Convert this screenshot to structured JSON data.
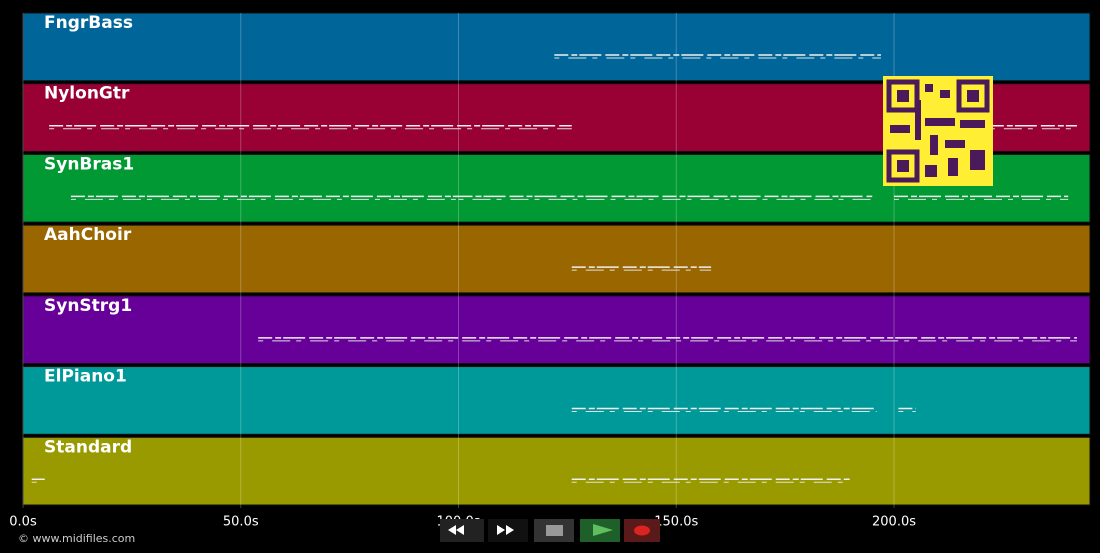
{
  "timeline": {
    "xlim": [
      0,
      245
    ],
    "xticks": [
      {
        "value": 0,
        "label": "0.0s"
      },
      {
        "value": 50,
        "label": "50.0s"
      },
      {
        "value": 100,
        "label": "100.0s"
      },
      {
        "value": 150,
        "label": "150.0s"
      },
      {
        "value": 200,
        "label": "200.0s"
      }
    ]
  },
  "tracks": [
    {
      "name": "FngrBass",
      "color": "#006699",
      "notes": [
        [
          122,
          197
        ]
      ]
    },
    {
      "name": "NylonGtr",
      "color": "#990033",
      "notes": [
        [
          6,
          126
        ],
        [
          222,
          242
        ]
      ]
    },
    {
      "name": "SynBras1",
      "color": "#009933",
      "notes": [
        [
          11,
          100
        ],
        [
          100,
          195
        ],
        [
          200,
          240
        ]
      ]
    },
    {
      "name": "AahChoir",
      "color": "#996600",
      "notes": [
        [
          126,
          158
        ]
      ]
    },
    {
      "name": "SynStrg1",
      "color": "#660099",
      "notes": [
        [
          54,
          242
        ]
      ]
    },
    {
      "name": "ElPiano1",
      "color": "#009999",
      "notes": [
        [
          126,
          196
        ],
        [
          201,
          205
        ]
      ]
    },
    {
      "name": "Standard",
      "color": "#999900",
      "notes": [
        [
          2,
          5
        ],
        [
          126,
          190
        ]
      ]
    }
  ],
  "footer": "© www.midifiles.com"
}
